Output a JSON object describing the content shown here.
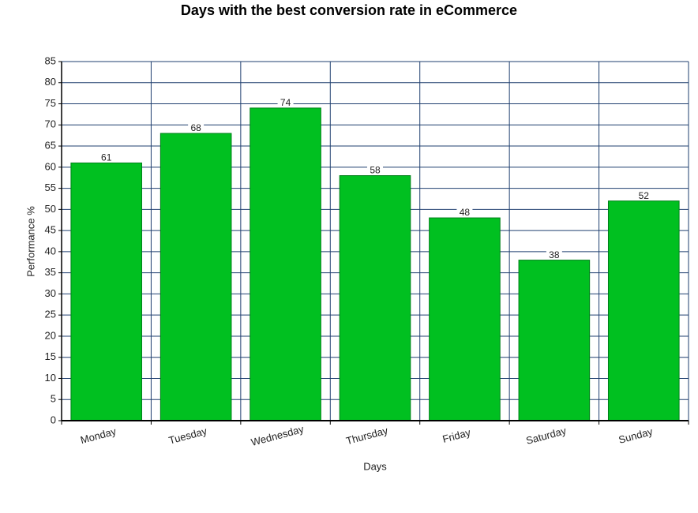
{
  "chart_data": {
    "type": "bar",
    "title": "Days with the best conversion rate in eCommerce",
    "x_label": "Days",
    "y_label": "Performance %",
    "categories": [
      "Monday",
      "Tuesday",
      "Wednesday",
      "Thursday",
      "Friday",
      "Saturday",
      "Sunday"
    ],
    "values": [
      61,
      68,
      74,
      58,
      48,
      38,
      52
    ],
    "color": "#00c020",
    "ylim": [
      0,
      85
    ],
    "yticks": [
      0,
      5,
      10,
      15,
      20,
      25,
      30,
      35,
      40,
      45,
      50,
      55,
      60,
      65,
      70,
      75,
      80,
      85
    ],
    "grid": true
  }
}
